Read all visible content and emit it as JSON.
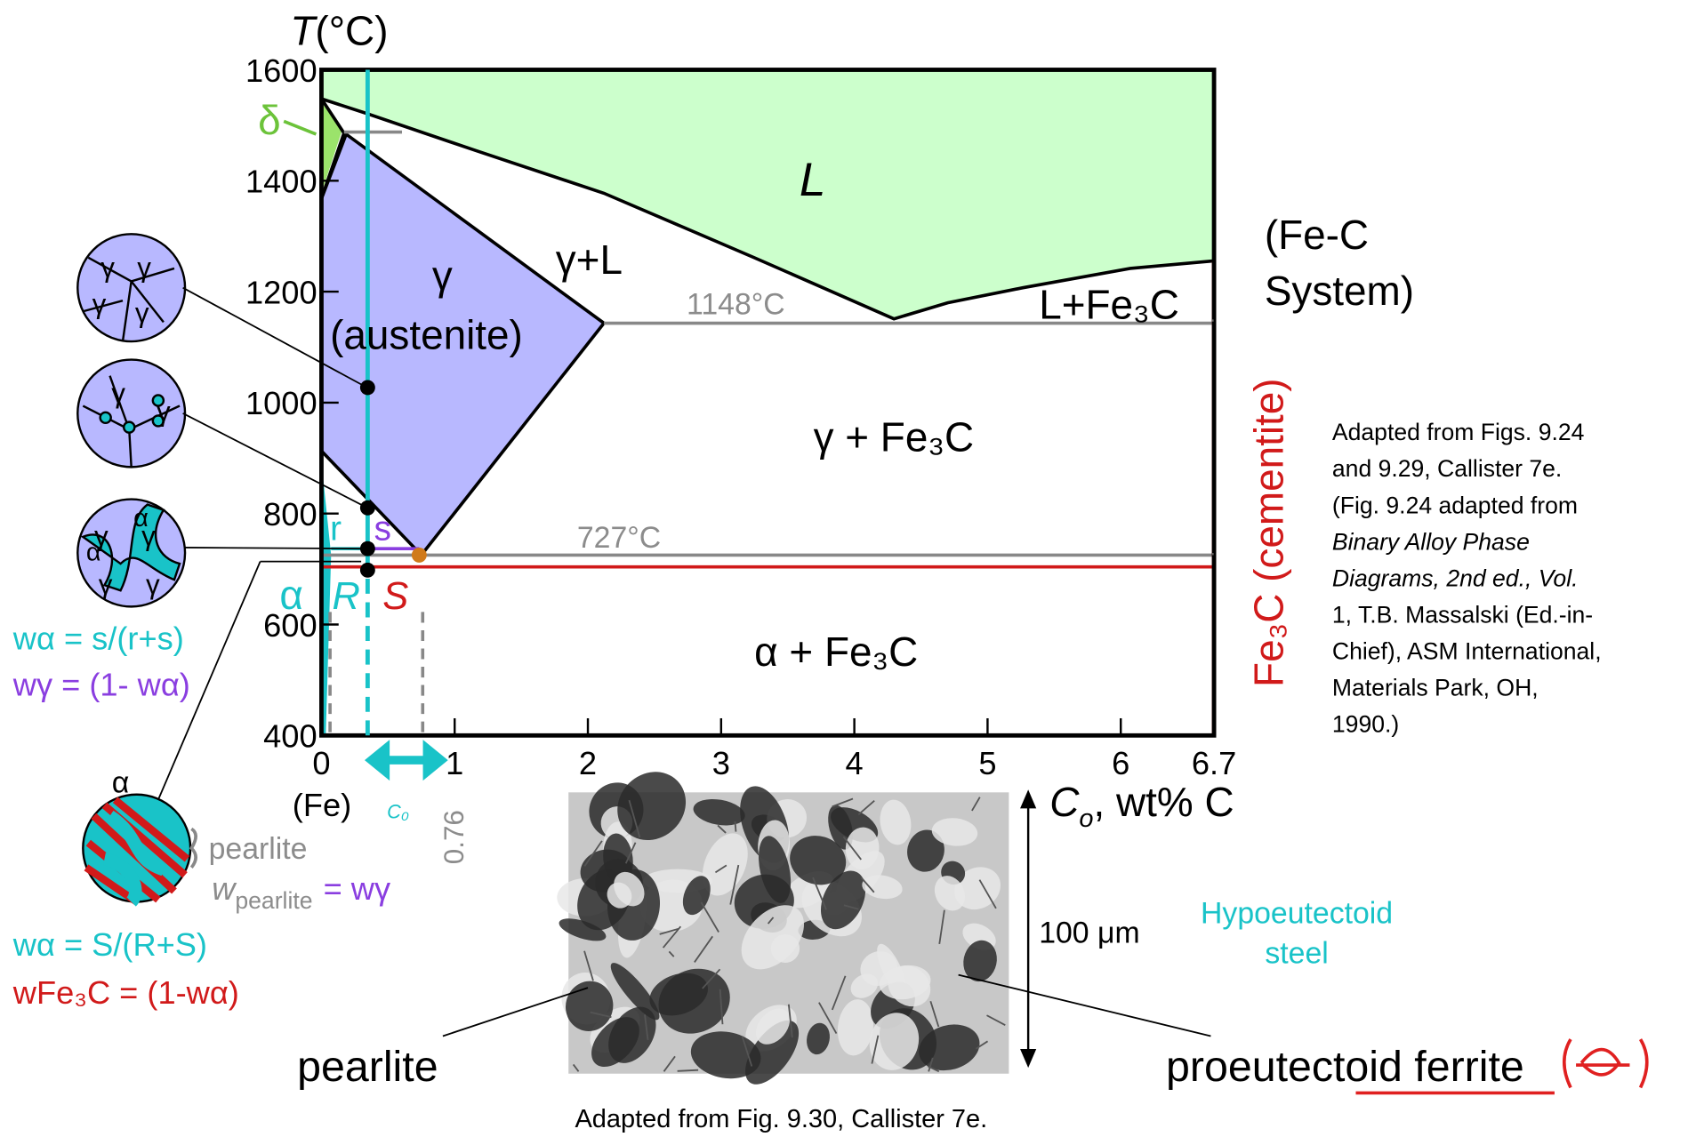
{
  "chart_data": {
    "type": "phase-diagram",
    "y_label": {
      "var": "T",
      "unit": "(°C)"
    },
    "x_label": {
      "var": "C",
      "sub": "o",
      "unit": ", wt% C"
    },
    "xlim": [
      0,
      6.7
    ],
    "ylim": [
      400,
      1600
    ],
    "xticks": [
      0,
      1,
      2,
      3,
      4,
      5,
      6,
      6.7
    ],
    "yticks": [
      400,
      600,
      800,
      1000,
      1200,
      1400,
      1600
    ],
    "origin_label": "(Fe)",
    "regions": {
      "liquid": "L",
      "gamma": "γ",
      "austenite": "(austenite)",
      "gamma_liquid": "γ+L",
      "liquid_cementite": "L+Fe₃C",
      "gamma_cementite": "γ + Fe₃C",
      "alpha_cementite": "α + Fe₃C",
      "delta": "δ"
    },
    "isotherms": [
      {
        "value": 1148,
        "label": "1148°C"
      },
      {
        "value": 727,
        "label": "727°C"
      }
    ],
    "eutectoid": 0.76,
    "c0_label": "C₀",
    "lever_labels": {
      "r": "r",
      "s": "s",
      "alpha": "α",
      "R": "R",
      "S": "S"
    },
    "system_label": [
      "(Fe-C",
      "System)"
    ],
    "cementite_label": "Fe₃C (cementite)"
  },
  "formulas": [
    "wα = s/(r+s)",
    "wγ = (1- wα)",
    "wα = S/(R+S)",
    "wFe₃C = (1-wα)"
  ],
  "pearlite_fraction": {
    "w": "w",
    "sub": "pearlite",
    "rest": "= wγ"
  },
  "micro_labels": {
    "gamma": "γ",
    "alpha": "α",
    "pearlite": "pearlite"
  },
  "source_note": [
    "Adapted from Figs. 9.24",
    "and 9.29, Callister 7e.",
    "(Fig. 9.24 adapted from",
    "Binary Alloy Phase",
    "Diagrams, 2nd ed., Vol.",
    "1, T.B. Massalski (Ed.-in-",
    "Chief), ASM International,",
    "Materials Park, OH,",
    "1990.)"
  ],
  "micrograph": {
    "scale": "100 μm",
    "title": [
      "Hypoeutectoid",
      "steel"
    ],
    "labels": [
      "pearlite",
      "proeutectoid ferrite"
    ],
    "caption": "Adapted from Fig. 9.30, Callister 7e."
  }
}
